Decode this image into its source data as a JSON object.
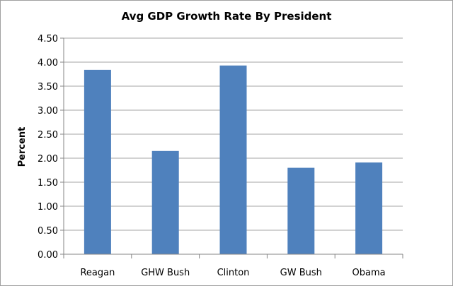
{
  "chart_data": {
    "type": "bar",
    "title": "Avg GDP Growth Rate By President",
    "xlabel": "",
    "ylabel": "Percent",
    "categories": [
      "Reagan",
      "GHW Bush",
      "Clinton",
      "GW Bush",
      "Obama"
    ],
    "values": [
      3.84,
      2.15,
      3.93,
      1.8,
      1.91
    ],
    "ylim": [
      0,
      4.5
    ],
    "yticks": [
      "0.00",
      "0.50",
      "1.00",
      "1.50",
      "2.00",
      "2.50",
      "3.00",
      "3.50",
      "4.00",
      "4.50"
    ],
    "grid": true,
    "legend": "none",
    "bar_color": "#4f81bd",
    "grid_color": "#a6a6a6"
  }
}
